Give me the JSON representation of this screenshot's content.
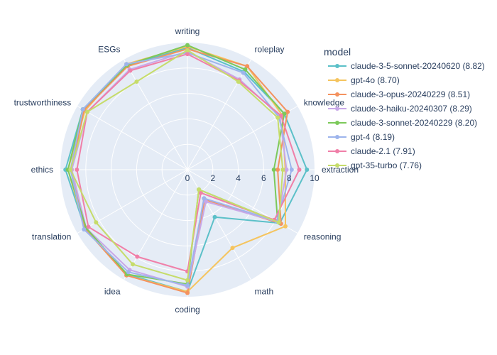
{
  "chart_data": {
    "type": "radar",
    "radial_range": [
      0,
      10
    ],
    "radial_ticks": [
      "0",
      "2",
      "4",
      "6",
      "8",
      "10"
    ],
    "categories": [
      "writing",
      "roleplay",
      "knowledge",
      "extraction",
      "reasoning",
      "math",
      "coding",
      "idea",
      "translation",
      "ethics",
      "trustworthiness",
      "ESGs"
    ],
    "legend_title": "model",
    "legend_position": "top-right",
    "series": [
      {
        "name": "claude-3-5-sonnet-20240620 (8.82)",
        "color": "#5bc0c8",
        "values": [
          9.6,
          8.9,
          8.8,
          9.4,
          8.4,
          4.3,
          9.6,
          9.5,
          9.3,
          9.6,
          9.5,
          9.5
        ]
      },
      {
        "name": "gpt-4o (8.70)",
        "color": "#f5c45e",
        "values": [
          9.7,
          9.4,
          8.6,
          7.7,
          8.9,
          7.1,
          9.6,
          9.6,
          9.3,
          9.4,
          9.3,
          9.6
        ]
      },
      {
        "name": "claude-3-opus-20240229 (8.51)",
        "color": "#f4925e",
        "values": [
          9.5,
          9.4,
          9.1,
          7.1,
          8.5,
          2.7,
          9.7,
          9.6,
          9.3,
          9.1,
          9.4,
          9.4
        ]
      },
      {
        "name": "claude-3-haiku-20240307 (8.29)",
        "color": "#c8a8e8",
        "values": [
          9.3,
          8.2,
          8.4,
          7.8,
          8.2,
          2.9,
          9.2,
          9.1,
          9.2,
          9.1,
          9.1,
          9.1
        ]
      },
      {
        "name": "claude-3-sonnet-20240229 (8.20)",
        "color": "#7cc95a",
        "values": [
          9.8,
          9.1,
          8.8,
          6.8,
          8.2,
          1.8,
          9.0,
          9.5,
          9.2,
          9.4,
          9.5,
          9.5
        ]
      },
      {
        "name": "gpt-4 (8.19)",
        "color": "#9db4ec",
        "values": [
          9.2,
          8.8,
          8.3,
          8.2,
          8.1,
          2.6,
          9.1,
          9.3,
          9.4,
          9.2,
          9.5,
          9.6
        ]
      },
      {
        "name": "claude-2.1 (7.91)",
        "color": "#f07fa8",
        "values": [
          9.1,
          8.1,
          8.5,
          8.8,
          7.9,
          2.1,
          8.0,
          7.9,
          9.0,
          8.7,
          9.1,
          9.0
        ]
      },
      {
        "name": "gpt-35-turbo (7.76)",
        "color": "#c6dc6a",
        "values": [
          9.4,
          8.0,
          8.2,
          7.5,
          8.3,
          1.8,
          8.7,
          8.6,
          8.3,
          9.2,
          9.1,
          8.0
        ]
      }
    ]
  }
}
